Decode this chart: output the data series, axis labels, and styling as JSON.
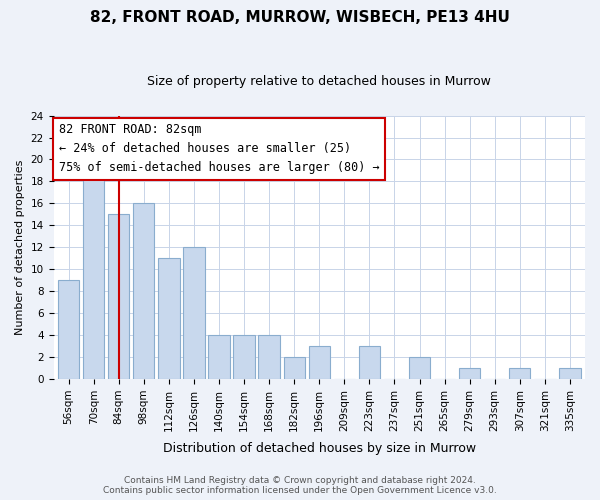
{
  "title": "82, FRONT ROAD, MURROW, WISBECH, PE13 4HU",
  "subtitle": "Size of property relative to detached houses in Murrow",
  "xlabel": "Distribution of detached houses by size in Murrow",
  "ylabel": "Number of detached properties",
  "bar_labels": [
    "56sqm",
    "70sqm",
    "84sqm",
    "98sqm",
    "112sqm",
    "126sqm",
    "140sqm",
    "154sqm",
    "168sqm",
    "182sqm",
    "196sqm",
    "209sqm",
    "223sqm",
    "237sqm",
    "251sqm",
    "265sqm",
    "279sqm",
    "293sqm",
    "307sqm",
    "321sqm",
    "335sqm"
  ],
  "bar_values": [
    9,
    19,
    15,
    16,
    11,
    12,
    4,
    4,
    4,
    2,
    3,
    0,
    3,
    0,
    2,
    0,
    1,
    0,
    1,
    0,
    1
  ],
  "bar_color": "#c8d8ed",
  "bar_edge_color": "#8aadce",
  "vline_color": "#cc0000",
  "annotation_line1": "82 FRONT ROAD: 82sqm",
  "annotation_line2": "← 24% of detached houses are smaller (25)",
  "annotation_line3": "75% of semi-detached houses are larger (80) →",
  "annotation_box_facecolor": "#ffffff",
  "annotation_box_edgecolor": "#cc0000",
  "ylim": [
    0,
    24
  ],
  "yticks": [
    0,
    2,
    4,
    6,
    8,
    10,
    12,
    14,
    16,
    18,
    20,
    22,
    24
  ],
  "footer_line1": "Contains HM Land Registry data © Crown copyright and database right 2024.",
  "footer_line2": "Contains public sector information licensed under the Open Government Licence v3.0.",
  "background_color": "#eef2f9",
  "plot_bg_color": "#ffffff",
  "grid_color": "#c8d4e8",
  "title_fontsize": 11,
  "subtitle_fontsize": 9,
  "xlabel_fontsize": 9,
  "ylabel_fontsize": 8,
  "tick_fontsize": 7.5,
  "annotation_fontsize": 8.5,
  "footer_fontsize": 6.5
}
